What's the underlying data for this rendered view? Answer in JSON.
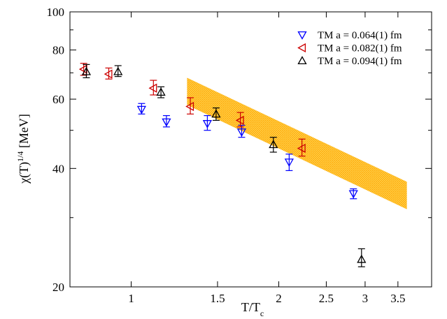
{
  "chart_data": {
    "type": "scatter",
    "title": "",
    "xlabel": {
      "main": "T/T",
      "sub": "c"
    },
    "ylabel": {
      "main": "χ(T)",
      "sup": "1/4",
      "tail": " [MeV]"
    },
    "x_scale": "log",
    "y_scale": "log",
    "xlim": [
      0.75,
      4.1
    ],
    "ylim": [
      20,
      100
    ],
    "x_ticks": [
      {
        "value": 1,
        "label": "1"
      },
      {
        "value": 1.5,
        "label": "1.5"
      },
      {
        "value": 2,
        "label": "2"
      },
      {
        "value": 2.5,
        "label": "2.5"
      },
      {
        "value": 3,
        "label": "3"
      },
      {
        "value": 3.5,
        "label": "3.5"
      }
    ],
    "y_ticks": [
      {
        "value": 20,
        "label": "20"
      },
      {
        "value": 40,
        "label": "40"
      },
      {
        "value": 60,
        "label": "60"
      },
      {
        "value": 80,
        "label": "80"
      },
      {
        "value": 100,
        "label": "100"
      }
    ],
    "grid": false,
    "legend_position": "top-right",
    "band": {
      "color": "#ffa500",
      "x": [
        1.3,
        3.65
      ],
      "upper": [
        68.0,
        37.0
      ],
      "lower": [
        58.0,
        31.5
      ]
    },
    "series": [
      {
        "name": "TM a = 0.064(1) fm",
        "marker": "triangle-down",
        "color": "#0000ff",
        "points": [
          {
            "x": 1.05,
            "y": 56.5,
            "lo": 55.0,
            "hi": 58.5
          },
          {
            "x": 1.18,
            "y": 52.5,
            "lo": 51.0,
            "hi": 54.5
          },
          {
            "x": 1.43,
            "y": 52.0,
            "lo": 50.0,
            "hi": 54.5
          },
          {
            "x": 1.68,
            "y": 49.5,
            "lo": 48.0,
            "hi": 51.5
          },
          {
            "x": 2.1,
            "y": 41.5,
            "lo": 39.5,
            "hi": 43.5
          },
          {
            "x": 2.84,
            "y": 34.5,
            "lo": 33.5,
            "hi": 35.5
          }
        ]
      },
      {
        "name": "TM a = 0.082(1) fm",
        "marker": "triangle-left",
        "color": "#cc0000",
        "points": [
          {
            "x": 0.8,
            "y": 71.5,
            "lo": 69.0,
            "hi": 74.0
          },
          {
            "x": 0.9,
            "y": 69.5,
            "lo": 67.5,
            "hi": 72.0
          },
          {
            "x": 1.11,
            "y": 64.0,
            "lo": 61.5,
            "hi": 67.0
          },
          {
            "x": 1.32,
            "y": 57.5,
            "lo": 55.0,
            "hi": 60.5
          },
          {
            "x": 1.67,
            "y": 53.0,
            "lo": 51.0,
            "hi": 55.5
          },
          {
            "x": 2.23,
            "y": 45.0,
            "lo": 43.0,
            "hi": 47.5
          }
        ]
      },
      {
        "name": "TM a = 0.094(1) fm",
        "marker": "triangle-up",
        "color": "#000000",
        "points": [
          {
            "x": 0.81,
            "y": 70.5,
            "lo": 68.0,
            "hi": 73.5
          },
          {
            "x": 0.94,
            "y": 70.5,
            "lo": 68.5,
            "hi": 73.0
          },
          {
            "x": 1.15,
            "y": 62.5,
            "lo": 60.5,
            "hi": 64.5
          },
          {
            "x": 1.49,
            "y": 55.0,
            "lo": 53.0,
            "hi": 57.0
          },
          {
            "x": 1.95,
            "y": 46.0,
            "lo": 44.0,
            "hi": 48.0
          },
          {
            "x": 2.95,
            "y": 23.5,
            "lo": 22.5,
            "hi": 25.0
          }
        ]
      }
    ]
  }
}
